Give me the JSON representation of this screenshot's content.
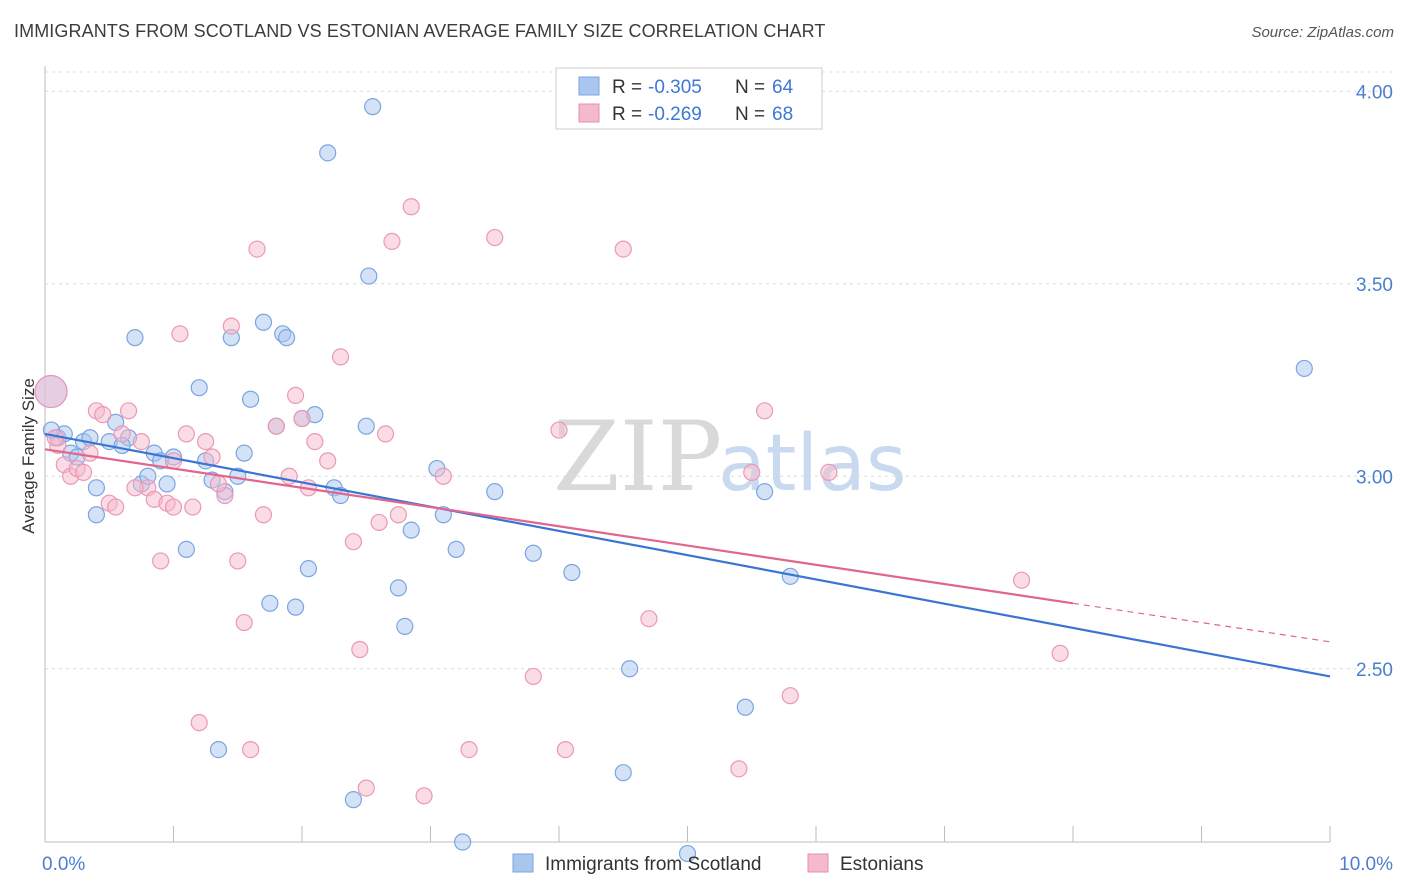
{
  "title": "IMMIGRANTS FROM SCOTLAND VS ESTONIAN AVERAGE FAMILY SIZE CORRELATION CHART",
  "source": "Source: ZipAtlas.com",
  "colors": {
    "blue": "#3a75d4",
    "blue_fill": "#a9c6ef",
    "pink": "#e0668f",
    "pink_fill": "#f5b9cc",
    "tick": "#4a7fcf"
  },
  "watermark": {
    "zip": "ZIP",
    "atlas": "atlas"
  },
  "legend": {
    "r_label": "R =",
    "n_label": "N =",
    "rows": [
      {
        "r": "-0.305",
        "n": "64"
      },
      {
        "r": "-0.269",
        "n": "68"
      }
    ]
  },
  "chart_data": {
    "type": "scatter",
    "title": "IMMIGRANTS FROM SCOTLAND VS ESTONIAN AVERAGE FAMILY SIZE CORRELATION CHART",
    "xlabel": "",
    "ylabel": "Average Family Size",
    "xlim": [
      0,
      10
    ],
    "ylim": [
      2.05,
      4.05
    ],
    "x_tick_labels": [
      "0.0%",
      "10.0%"
    ],
    "y_ticks": [
      2.5,
      3.0,
      3.5,
      4.0
    ],
    "y_tick_labels": [
      "2.50",
      "3.00",
      "3.50",
      "4.00"
    ],
    "legend_position": "top-center",
    "grid": true,
    "series": [
      {
        "name": "Immigrants from Scotland",
        "trend": {
          "x": [
            0.0,
            10.0
          ],
          "y": [
            3.11,
            2.48
          ],
          "dashed_from": null
        },
        "points": [
          [
            0.0,
            3.22
          ],
          [
            0.1,
            3.1
          ],
          [
            0.15,
            3.11
          ],
          [
            0.2,
            3.06
          ],
          [
            0.25,
            3.05
          ],
          [
            0.3,
            3.09
          ],
          [
            0.35,
            3.1
          ],
          [
            0.4,
            2.97
          ],
          [
            0.4,
            2.9
          ],
          [
            0.5,
            3.09
          ],
          [
            0.55,
            3.14
          ],
          [
            0.65,
            3.1
          ],
          [
            0.7,
            3.36
          ],
          [
            0.75,
            2.98
          ],
          [
            0.8,
            3.0
          ],
          [
            0.85,
            3.06
          ],
          [
            0.9,
            3.04
          ],
          [
            0.95,
            2.98
          ],
          [
            1.0,
            3.05
          ],
          [
            1.1,
            2.81
          ],
          [
            1.2,
            3.23
          ],
          [
            1.25,
            3.04
          ],
          [
            1.3,
            2.99
          ],
          [
            1.35,
            2.29
          ],
          [
            1.4,
            2.96
          ],
          [
            1.45,
            3.36
          ],
          [
            1.5,
            3.0
          ],
          [
            1.55,
            3.06
          ],
          [
            1.6,
            3.2
          ],
          [
            1.7,
            3.4
          ],
          [
            1.75,
            2.67
          ],
          [
            1.8,
            3.13
          ],
          [
            1.85,
            3.37
          ],
          [
            1.88,
            3.36
          ],
          [
            1.95,
            2.66
          ],
          [
            2.0,
            3.15
          ],
          [
            2.05,
            2.76
          ],
          [
            2.1,
            3.16
          ],
          [
            2.2,
            3.84
          ],
          [
            2.25,
            2.97
          ],
          [
            2.3,
            2.95
          ],
          [
            2.4,
            2.16
          ],
          [
            2.5,
            3.13
          ],
          [
            2.52,
            3.52
          ],
          [
            2.55,
            3.96
          ],
          [
            2.75,
            2.71
          ],
          [
            2.8,
            2.61
          ],
          [
            2.85,
            2.86
          ],
          [
            3.05,
            3.02
          ],
          [
            3.1,
            2.9
          ],
          [
            3.2,
            2.81
          ],
          [
            3.25,
            2.05
          ],
          [
            3.5,
            2.96
          ],
          [
            3.8,
            2.8
          ],
          [
            4.1,
            2.75
          ],
          [
            4.5,
            2.23
          ],
          [
            4.55,
            2.5
          ],
          [
            5.0,
            2.02
          ],
          [
            5.45,
            2.4
          ],
          [
            5.6,
            2.96
          ],
          [
            5.8,
            2.74
          ],
          [
            9.8,
            3.28
          ],
          [
            0.05,
            3.12
          ],
          [
            0.6,
            3.08
          ]
        ]
      },
      {
        "name": "Estonians",
        "trend": {
          "x": [
            0.0,
            8.0
          ],
          "y": [
            3.07,
            2.67
          ],
          "dashed_to": [
            10.0,
            2.57
          ]
        },
        "points": [
          [
            0.0,
            3.22
          ],
          [
            0.1,
            3.08
          ],
          [
            0.15,
            3.03
          ],
          [
            0.2,
            3.0
          ],
          [
            0.25,
            3.02
          ],
          [
            0.3,
            3.01
          ],
          [
            0.35,
            3.06
          ],
          [
            0.4,
            3.17
          ],
          [
            0.45,
            3.16
          ],
          [
            0.5,
            2.93
          ],
          [
            0.55,
            2.92
          ],
          [
            0.6,
            3.11
          ],
          [
            0.65,
            3.17
          ],
          [
            0.75,
            3.09
          ],
          [
            0.8,
            2.97
          ],
          [
            0.85,
            2.94
          ],
          [
            0.9,
            2.78
          ],
          [
            0.95,
            2.93
          ],
          [
            1.0,
            3.04
          ],
          [
            1.05,
            3.37
          ],
          [
            1.1,
            3.11
          ],
          [
            1.15,
            2.92
          ],
          [
            1.2,
            2.36
          ],
          [
            1.25,
            3.09
          ],
          [
            1.3,
            3.05
          ],
          [
            1.4,
            2.95
          ],
          [
            1.45,
            3.39
          ],
          [
            1.5,
            2.78
          ],
          [
            1.55,
            2.62
          ],
          [
            1.6,
            2.29
          ],
          [
            1.65,
            3.59
          ],
          [
            1.7,
            2.9
          ],
          [
            1.8,
            3.13
          ],
          [
            1.9,
            3.0
          ],
          [
            1.95,
            3.21
          ],
          [
            2.0,
            3.15
          ],
          [
            2.05,
            2.97
          ],
          [
            2.1,
            3.09
          ],
          [
            2.2,
            3.04
          ],
          [
            2.3,
            3.31
          ],
          [
            2.4,
            2.83
          ],
          [
            2.45,
            2.55
          ],
          [
            2.5,
            2.19
          ],
          [
            2.6,
            2.88
          ],
          [
            2.65,
            3.11
          ],
          [
            2.7,
            3.61
          ],
          [
            2.75,
            2.9
          ],
          [
            2.85,
            3.7
          ],
          [
            2.95,
            2.17
          ],
          [
            3.1,
            3.0
          ],
          [
            3.3,
            2.29
          ],
          [
            3.5,
            3.62
          ],
          [
            3.8,
            2.48
          ],
          [
            4.0,
            3.12
          ],
          [
            4.05,
            2.29
          ],
          [
            4.5,
            3.59
          ],
          [
            4.7,
            2.63
          ],
          [
            5.4,
            2.24
          ],
          [
            5.5,
            3.01
          ],
          [
            5.6,
            3.17
          ],
          [
            5.8,
            2.43
          ],
          [
            6.1,
            3.01
          ],
          [
            7.6,
            2.73
          ],
          [
            7.9,
            2.54
          ],
          [
            0.08,
            3.1
          ],
          [
            0.7,
            2.97
          ],
          [
            1.0,
            2.92
          ],
          [
            1.35,
            2.98
          ]
        ]
      }
    ]
  }
}
